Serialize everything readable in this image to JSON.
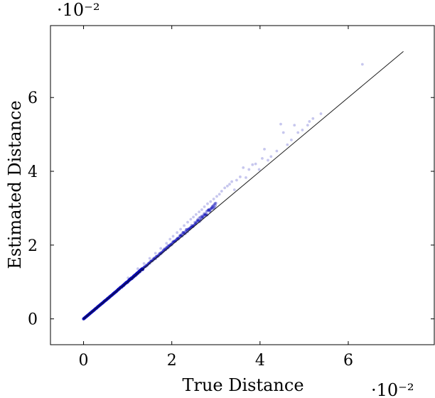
{
  "chart_data": {
    "type": "scatter",
    "xlabel": "True Distance",
    "ylabel": "Estimated Distance",
    "x_multiplier": "·10⁻²",
    "y_multiplier": "·10⁻²",
    "xlim": [
      -0.0075,
      0.0795
    ],
    "ylim": [
      -0.007,
      0.0795
    ],
    "x_ticks": [
      0,
      0.02,
      0.04,
      0.06
    ],
    "x_tick_labels": [
      "0",
      "2",
      "4",
      "6"
    ],
    "y_ticks": [
      0,
      0.02,
      0.04,
      0.06
    ],
    "y_tick_labels": [
      "0",
      "2",
      "4",
      "6"
    ],
    "grid": false,
    "reference_line": {
      "from": [
        0,
        0
      ],
      "to": [
        0.0725,
        0.0725
      ],
      "color": "#1a1a1a"
    },
    "series": [
      {
        "color": "#0000b3",
        "dense_band": {
          "x_start": 0,
          "x_end": 0.03
        },
        "points": [
          [
            0.0101,
            0.0111
          ],
          [
            0.0123,
            0.0136
          ],
          [
            0.0137,
            0.015
          ],
          [
            0.015,
            0.0164
          ],
          [
            0.0163,
            0.0178
          ],
          [
            0.0175,
            0.0191
          ],
          [
            0.0188,
            0.0205
          ],
          [
            0.0196,
            0.0216
          ],
          [
            0.0203,
            0.0224
          ],
          [
            0.0212,
            0.0234
          ],
          [
            0.022,
            0.0243
          ],
          [
            0.0228,
            0.0253
          ],
          [
            0.0236,
            0.0262
          ],
          [
            0.0243,
            0.027
          ],
          [
            0.0249,
            0.0276
          ],
          [
            0.0255,
            0.0283
          ],
          [
            0.0262,
            0.029
          ],
          [
            0.0268,
            0.0296
          ],
          [
            0.0274,
            0.0304
          ],
          [
            0.0281,
            0.0312
          ],
          [
            0.0288,
            0.0318
          ],
          [
            0.0295,
            0.0325
          ],
          [
            0.0302,
            0.0332
          ],
          [
            0.0308,
            0.0338
          ],
          [
            0.0313,
            0.0346
          ],
          [
            0.032,
            0.0355
          ],
          [
            0.0326,
            0.036
          ],
          [
            0.0331,
            0.0365
          ],
          [
            0.0336,
            0.0372
          ],
          [
            0.0342,
            0.035
          ],
          [
            0.0347,
            0.0376
          ],
          [
            0.0355,
            0.0385
          ],
          [
            0.0362,
            0.041
          ],
          [
            0.0368,
            0.0383
          ],
          [
            0.0375,
            0.0405
          ],
          [
            0.0383,
            0.0418
          ],
          [
            0.039,
            0.042
          ],
          [
            0.0398,
            0.0405
          ],
          [
            0.0405,
            0.0435
          ],
          [
            0.041,
            0.046
          ],
          [
            0.0418,
            0.043
          ],
          [
            0.0425,
            0.044
          ],
          [
            0.0438,
            0.0455
          ],
          [
            0.0447,
            0.0528
          ],
          [
            0.0453,
            0.0505
          ],
          [
            0.0462,
            0.0472
          ],
          [
            0.0471,
            0.0485
          ],
          [
            0.0478,
            0.0525
          ],
          [
            0.0486,
            0.0505
          ],
          [
            0.0496,
            0.0512
          ],
          [
            0.0508,
            0.0525
          ],
          [
            0.0512,
            0.0535
          ],
          [
            0.052,
            0.0543
          ],
          [
            0.0538,
            0.0556
          ],
          [
            0.0632,
            0.069
          ]
        ]
      }
    ]
  }
}
